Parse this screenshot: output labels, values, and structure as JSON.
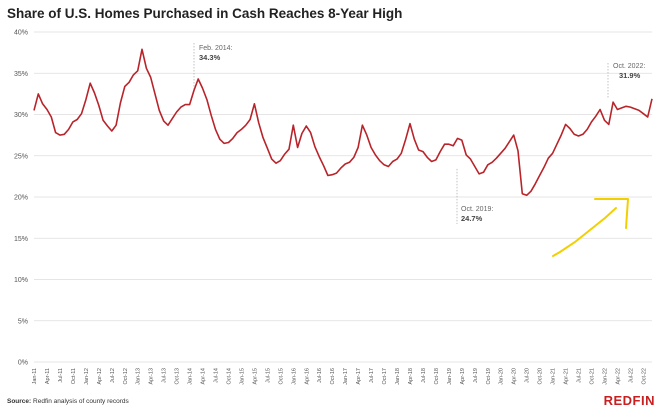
{
  "title": "Share of U.S. Homes Purchased in Cash Reaches 8-Year High",
  "source": {
    "label": "Source:",
    "text": "Redfin analysis of county records"
  },
  "logo": "REDFIN",
  "colors": {
    "line": "#b8242a",
    "grid": "#dddddd",
    "arrow": "#f2d000",
    "logo": "#c82021"
  },
  "chart_data": {
    "type": "line",
    "title": "Share of U.S. Homes Purchased in Cash Reaches 8-Year High",
    "xlabel": "",
    "ylabel": "",
    "ylim": [
      0,
      40
    ],
    "y_ticks": [
      "0%",
      "5%",
      "10%",
      "15%",
      "20%",
      "25%",
      "30%",
      "35%",
      "40%"
    ],
    "grid": "horizontal",
    "x_tick_labels": [
      "Jan-11",
      "Apr-11",
      "Jul-11",
      "Oct-11",
      "Jan-12",
      "Apr-12",
      "Jul-12",
      "Oct-12",
      "Jan-13",
      "Apr-13",
      "Jul-13",
      "Oct-13",
      "Jan-14",
      "Apr-14",
      "Jul-14",
      "Oct-14",
      "Jan-15",
      "Apr-15",
      "Jul-15",
      "Oct-15",
      "Jan-16",
      "Apr-16",
      "Jul-16",
      "Oct-16",
      "Jan-17",
      "Apr-17",
      "Jul-17",
      "Oct-17",
      "Jan-18",
      "Apr-18",
      "Jul-18",
      "Oct-18",
      "Jan-19",
      "Apr-19",
      "Jul-19",
      "Oct-19",
      "Jan-20",
      "Apr-20",
      "Jul-20",
      "Oct-20",
      "Jan-21",
      "Apr-21",
      "Jul-21",
      "Oct-21",
      "Jan-22",
      "Apr-22",
      "Jul-22",
      "Oct-22"
    ],
    "series": [
      {
        "values": [
          30.5,
          32.5,
          31.3,
          30.6,
          29.7,
          27.8,
          27.5,
          27.6,
          28.2,
          29.1,
          29.4,
          30.1,
          31.8,
          33.8,
          32.6,
          31.1,
          29.3,
          28.6,
          28.0,
          28.7,
          31.4,
          33.4,
          33.9,
          34.8,
          35.3,
          37.9,
          35.6,
          34.5,
          32.5,
          30.5,
          29.2,
          28.7,
          29.5,
          30.3,
          30.9,
          31.2,
          31.2,
          32.9,
          34.3,
          33.2,
          31.8,
          29.9,
          28.2,
          27.0,
          26.5,
          26.6,
          27.1,
          27.8,
          28.2,
          28.7,
          29.4,
          31.3,
          29.0,
          27.2,
          25.9,
          24.6,
          24.1,
          24.4,
          25.2,
          25.8,
          28.7,
          26.0,
          27.7,
          28.6,
          27.8,
          26.1,
          24.9,
          23.8,
          22.6,
          22.7,
          22.9,
          23.5,
          24.0,
          24.2,
          24.8,
          26.0,
          28.7,
          27.5,
          26.0,
          25.1,
          24.4,
          23.9,
          23.7,
          24.3,
          24.6,
          25.3,
          27.0,
          28.9,
          27.0,
          25.7,
          25.5,
          24.8,
          24.3,
          24.5,
          25.5,
          26.4,
          26.4,
          26.2,
          27.1,
          26.9,
          25.1,
          24.6,
          23.7,
          22.8,
          23.0,
          23.9,
          24.2,
          24.7,
          25.3,
          25.9,
          26.7,
          27.5,
          25.6,
          20.4,
          20.2,
          20.7,
          21.6,
          22.6,
          23.6,
          24.7,
          25.3,
          26.4,
          27.5,
          28.8,
          28.3,
          27.6,
          27.4,
          27.6,
          28.2,
          29.1,
          29.8,
          30.6,
          29.3,
          28.8,
          31.5,
          30.6,
          30.8,
          31.0,
          30.9,
          30.7,
          30.5,
          30.1,
          29.7,
          31.9
        ]
      }
    ],
    "annotations": [
      {
        "label": "Feb. 2014:",
        "value": "34.3%"
      },
      {
        "label": "Oct. 2019:",
        "value": "24.7%"
      },
      {
        "label": "Oct. 2022:",
        "value": "31.9%"
      }
    ]
  }
}
